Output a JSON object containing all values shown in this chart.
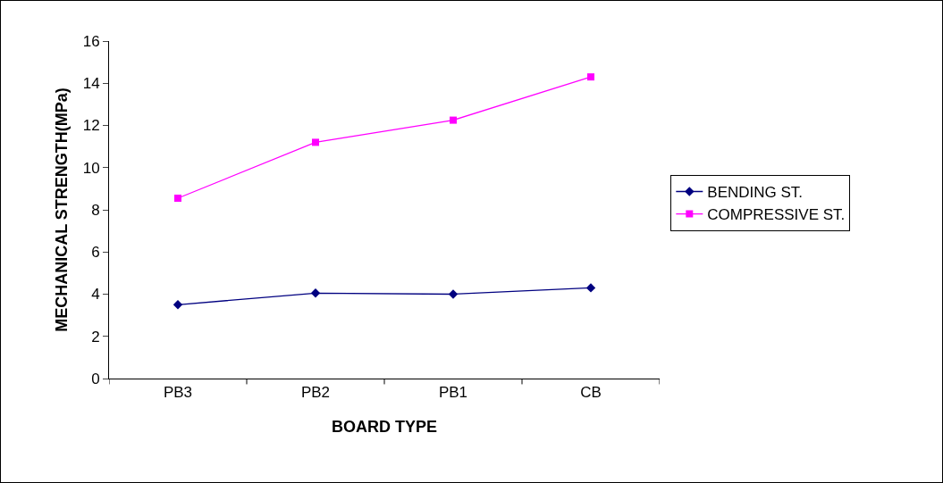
{
  "chart_data": {
    "type": "line",
    "xlabel": "BOARD TYPE",
    "ylabel": "MECHANICAL STRENGTH(MPa)",
    "categories": [
      "PB3",
      "PB2",
      "PB1",
      "CB"
    ],
    "series": [
      {
        "name": "BENDING ST.",
        "color": "#000080",
        "marker": "diamond",
        "values": [
          3.5,
          4.05,
          4.0,
          4.3
        ]
      },
      {
        "name": "COMPRESSIVE ST.",
        "color": "#ff00ff",
        "marker": "square",
        "values": [
          8.55,
          11.2,
          12.25,
          14.3
        ]
      }
    ],
    "ylim": [
      0,
      16
    ],
    "yticks": [
      0,
      2,
      4,
      6,
      8,
      10,
      12,
      14,
      16
    ],
    "grid": false,
    "legend": "right"
  }
}
